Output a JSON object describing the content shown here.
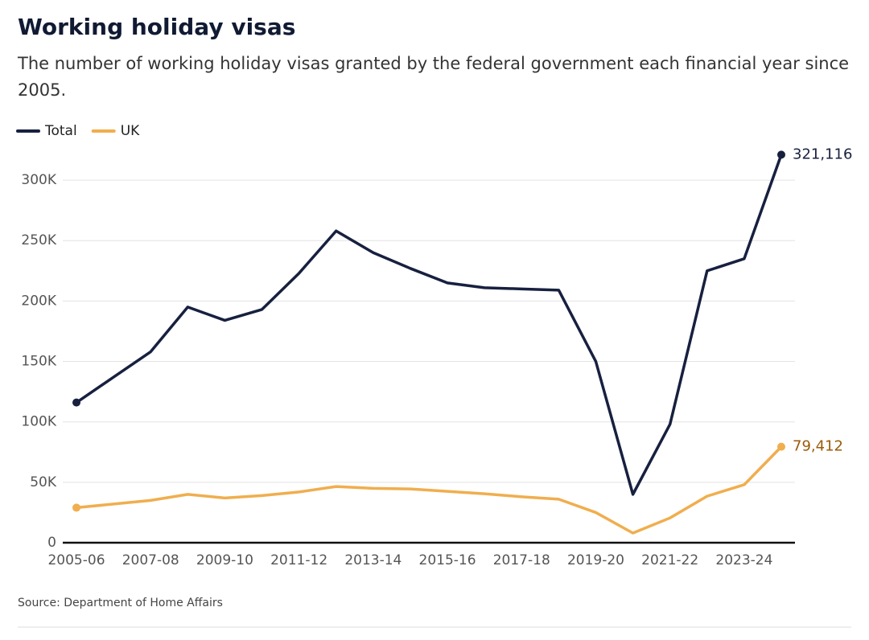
{
  "chart_data": {
    "type": "line",
    "title": "Working holiday visas",
    "subtitle": [
      "The number of working holiday visas granted by the federal government each financial year since",
      "2005."
    ],
    "source": "Source: Department of Home Affairs",
    "categories": [
      "2005-06",
      null,
      "2007-08",
      null,
      "2009-10",
      null,
      "2011-12",
      null,
      "2013-14",
      null,
      "2015-16",
      null,
      "2017-18",
      null,
      "2019-20",
      null,
      "2021-22",
      null,
      "2023-24",
      null
    ],
    "series": [
      {
        "name": "Total",
        "color": "#17203f",
        "label_color": "#17203f",
        "values": [
          116000,
          137000,
          158000,
          195000,
          184000,
          193000,
          223000,
          258000,
          240000,
          227000,
          215000,
          211000,
          210000,
          209000,
          150000,
          40000,
          98000,
          225000,
          235000,
          321116
        ],
        "value_labels": [
          null,
          null,
          null,
          null,
          null,
          null,
          null,
          null,
          null,
          null,
          null,
          null,
          null,
          null,
          null,
          null,
          null,
          null,
          null,
          "321,116"
        ]
      },
      {
        "name": "UK",
        "color": "#f0ae4e",
        "label_color": "#9a5b08",
        "values": [
          29000,
          32000,
          35000,
          40000,
          37000,
          39000,
          42000,
          46500,
          45000,
          44500,
          42500,
          40500,
          38000,
          36000,
          25000,
          8000,
          20500,
          38500,
          48000,
          79412
        ],
        "value_labels": [
          null,
          null,
          null,
          null,
          null,
          null,
          null,
          null,
          null,
          null,
          null,
          null,
          null,
          null,
          null,
          null,
          null,
          null,
          null,
          "79,412"
        ]
      }
    ],
    "ylim": [
      0,
      330000
    ],
    "yticks": [
      0,
      {
        "value": 50000,
        "label": "50K"
      },
      {
        "value": 100000,
        "label": "100K"
      },
      {
        "value": 150000,
        "label": "150K"
      },
      {
        "value": 200000,
        "label": "200K"
      },
      {
        "value": 250000,
        "label": "250K"
      },
      {
        "value": 300000,
        "label": "300K"
      }
    ],
    "grid": true
  }
}
